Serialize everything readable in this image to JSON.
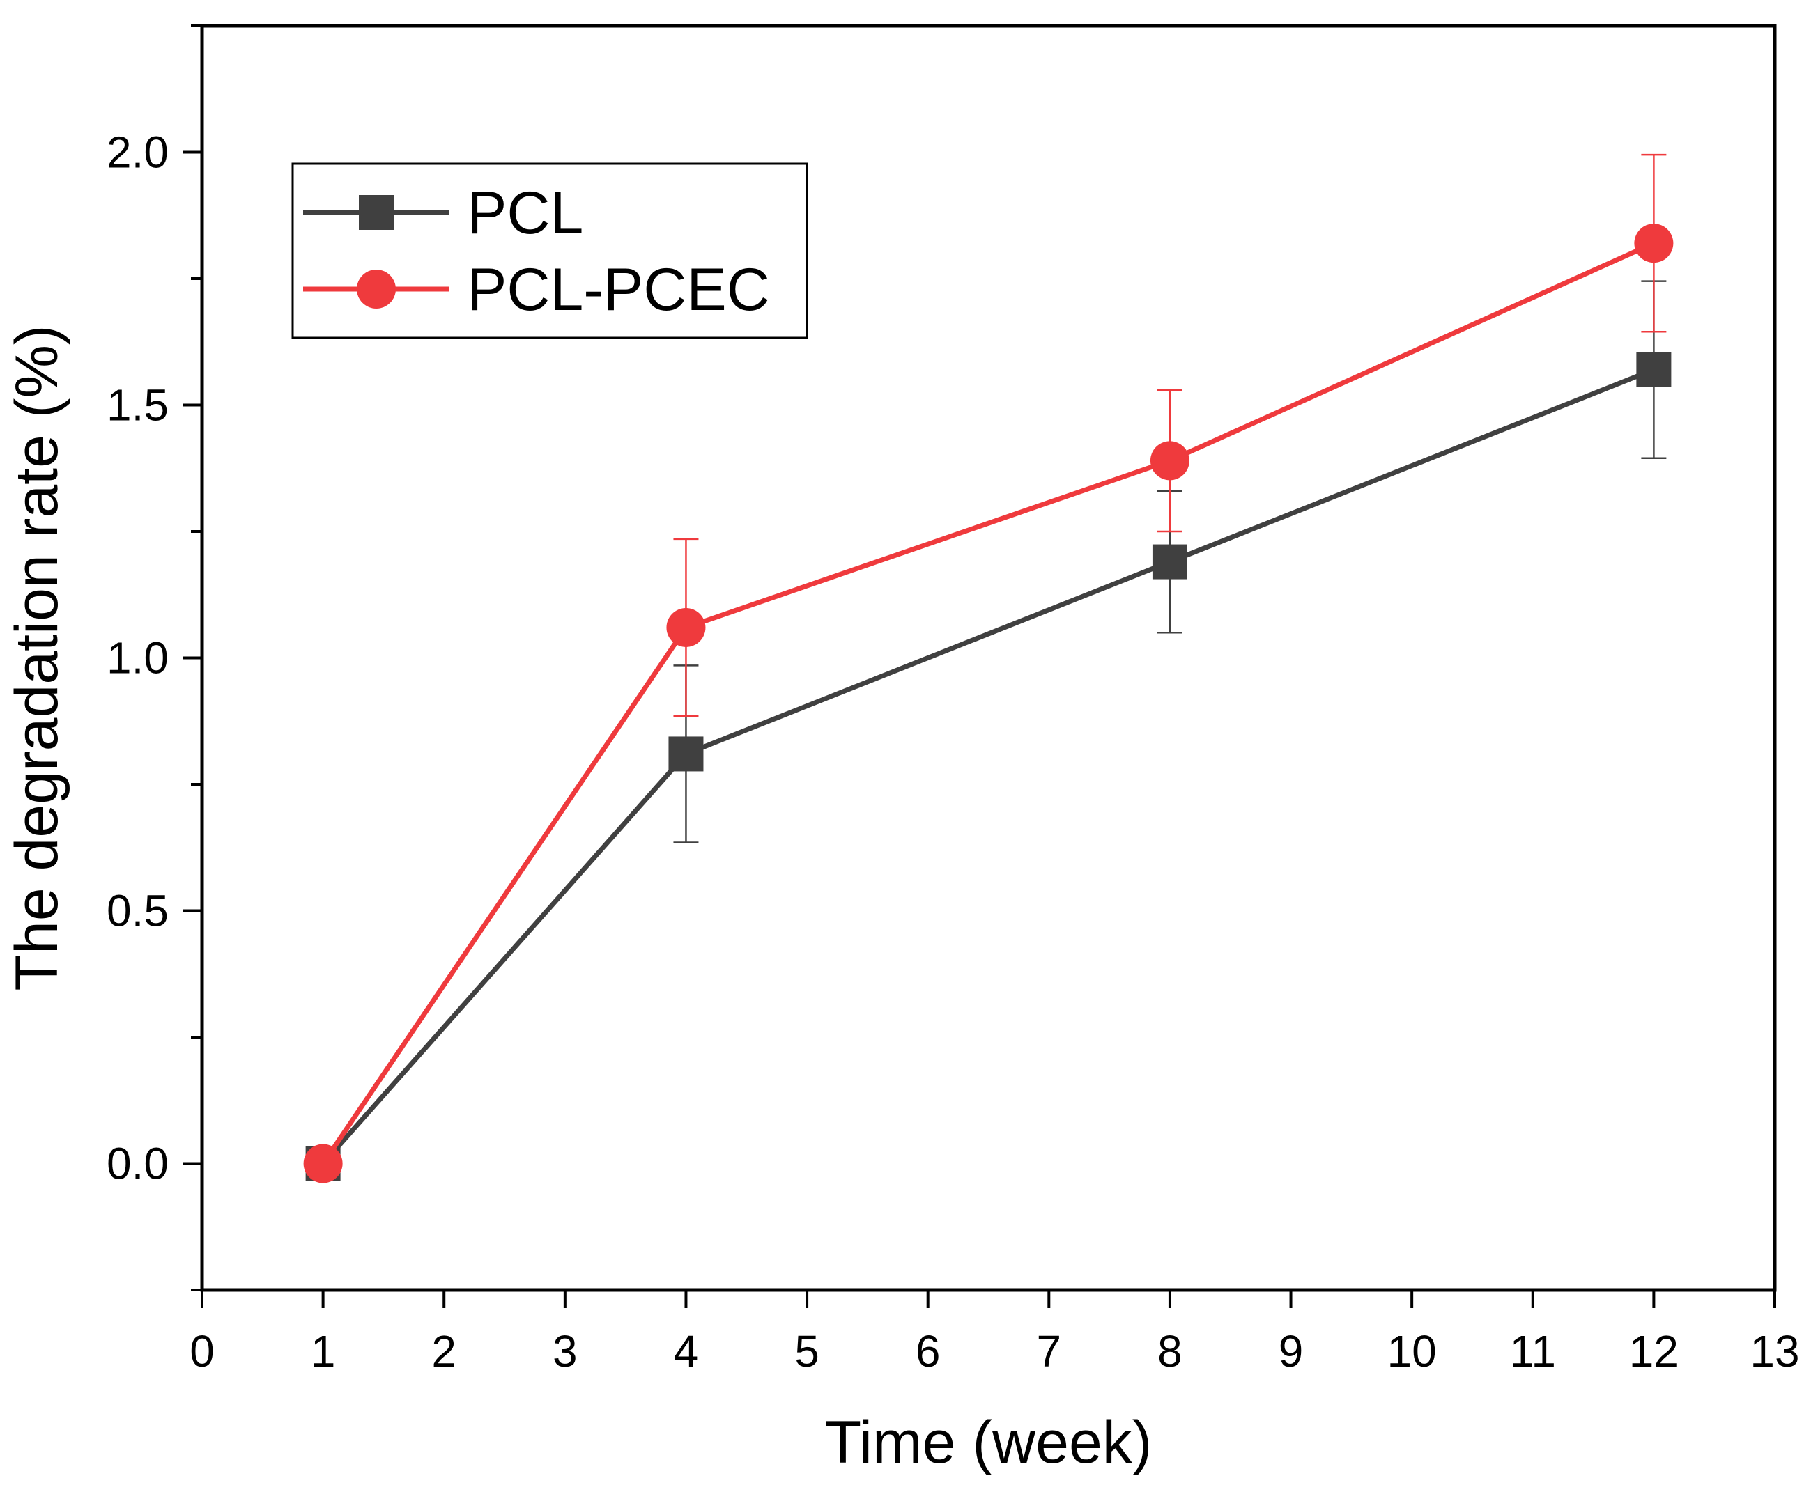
{
  "chart_data": {
    "type": "line",
    "title": "",
    "xlabel": "Time (week)",
    "ylabel": "The degradation rate (%)",
    "xlim": [
      0,
      13
    ],
    "ylim": [
      -0.25,
      2.25
    ],
    "grid": false,
    "x_ticks": [
      0,
      1,
      2,
      3,
      4,
      5,
      6,
      7,
      8,
      9,
      10,
      11,
      12,
      13
    ],
    "x_tick_labels": [
      "0",
      "1",
      "2",
      "3",
      "4",
      "5",
      "6",
      "7",
      "8",
      "9",
      "10",
      "11",
      "12",
      "13"
    ],
    "y_ticks": [
      0.0,
      0.5,
      1.0,
      1.5,
      2.0
    ],
    "y_tick_labels": [
      "0.0",
      "0.5",
      "1.0",
      "1.5",
      "2.0"
    ],
    "legend_position": "top-left",
    "x": [
      1,
      4,
      8,
      12
    ],
    "series": [
      {
        "name": "PCL",
        "marker": "square",
        "color": "#404040",
        "values": [
          0.0,
          0.81,
          1.19,
          1.57
        ],
        "errors": [
          0.0,
          0.175,
          0.14,
          0.175
        ]
      },
      {
        "name": "PCL-PCEC",
        "marker": "circle",
        "color": "#ef3a3d",
        "values": [
          0.0,
          1.06,
          1.39,
          1.82
        ],
        "errors": [
          0.0,
          0.175,
          0.14,
          0.175
        ]
      }
    ]
  }
}
